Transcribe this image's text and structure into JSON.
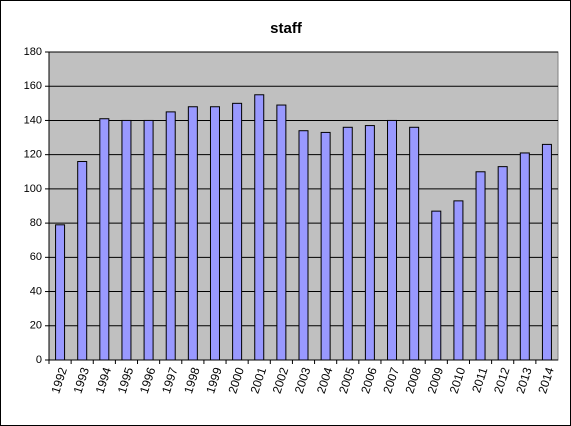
{
  "chart_data": {
    "type": "bar",
    "title": "staff",
    "categories": [
      "1992",
      "1993",
      "1994",
      "1995",
      "1996",
      "1997",
      "1998",
      "1999",
      "2000",
      "2001",
      "2002",
      "2003",
      "2004",
      "2005",
      "2006",
      "2007",
      "2008",
      "2009",
      "2010",
      "2011",
      "2012",
      "2013",
      "2014"
    ],
    "values": [
      79,
      116,
      141,
      140,
      140,
      145,
      148,
      148,
      150,
      155,
      149,
      134,
      133,
      136,
      137,
      140,
      136,
      87,
      93,
      110,
      113,
      121,
      126
    ],
    "color": "#9999ff",
    "ylim": [
      0,
      180
    ],
    "yticks": [
      0,
      20,
      40,
      60,
      80,
      100,
      120,
      140,
      160,
      180
    ],
    "grid": true
  }
}
